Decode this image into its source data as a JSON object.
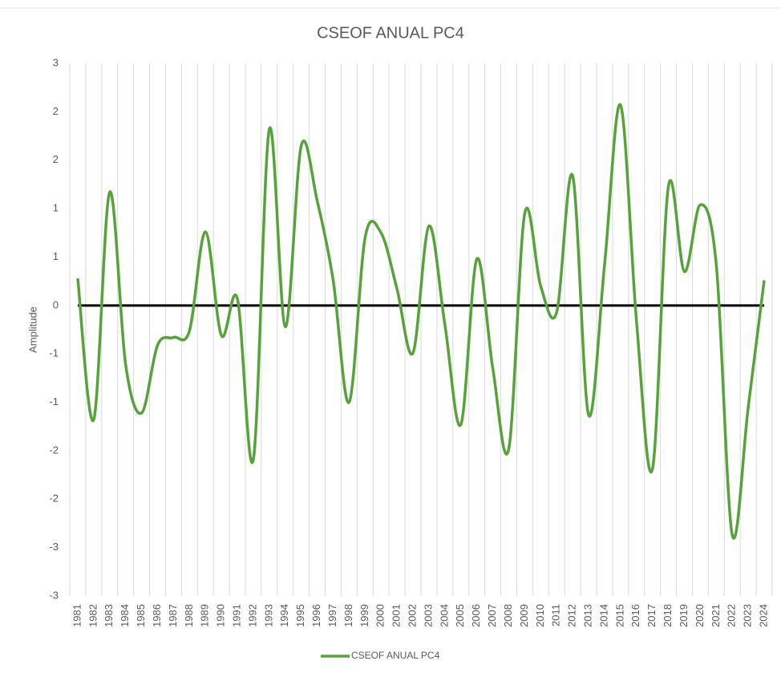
{
  "chart_data": {
    "type": "line",
    "title": "CSEOF ANUAL PC4",
    "y_label": "Amplitude",
    "categories": [
      "1981",
      "1982",
      "1983",
      "1984",
      "1985",
      "1986",
      "1987",
      "1988",
      "1989",
      "1990",
      "1991",
      "1992",
      "1993",
      "1994",
      "1995",
      "1996",
      "1997",
      "1998",
      "1999",
      "2000",
      "2001",
      "2002",
      "2003",
      "2004",
      "2005",
      "2006",
      "2007",
      "2008",
      "2009",
      "2010",
      "2011",
      "2012",
      "2013",
      "2014",
      "2015",
      "2016",
      "2017",
      "2018",
      "2019",
      "2020",
      "2021",
      "2022",
      "2023",
      "2024"
    ],
    "series": [
      {
        "name": "CSEOF ANUAL PC4",
        "color": "#56a33a",
        "values": [
          0.28,
          -1.18,
          1.17,
          -0.61,
          -1.11,
          -0.41,
          -0.33,
          -0.26,
          0.76,
          -0.31,
          0.07,
          -1.59,
          1.82,
          -0.22,
          1.65,
          1.08,
          0.26,
          -1.0,
          0.7,
          0.75,
          0.17,
          -0.49,
          0.82,
          -0.2,
          -1.23,
          0.48,
          -0.65,
          -1.48,
          0.95,
          0.2,
          -0.07,
          1.34,
          -1.13,
          0.42,
          2.07,
          -0.16,
          -1.69,
          1.23,
          0.35,
          1.04,
          0.42,
          -2.37,
          -1.05,
          0.26
        ]
      }
    ],
    "ylim": [
      -3,
      2.5
    ],
    "yticks": [
      {
        "value": -3,
        "label": "-3"
      },
      {
        "value": -2.5,
        "label": "-3"
      },
      {
        "value": -2,
        "label": "-2"
      },
      {
        "value": -1.5,
        "label": "-2"
      },
      {
        "value": -1,
        "label": "-1"
      },
      {
        "value": -0.5,
        "label": "-1"
      },
      0,
      {
        "value": 0.5,
        "label": "1"
      },
      {
        "value": 1,
        "label": "1"
      },
      {
        "value": 1.5,
        "label": "2"
      },
      {
        "value": 2,
        "label": "2"
      },
      {
        "value": 2.5,
        "label": "3"
      }
    ],
    "grid": {
      "x": true,
      "y": false
    },
    "legend": "bottom"
  }
}
